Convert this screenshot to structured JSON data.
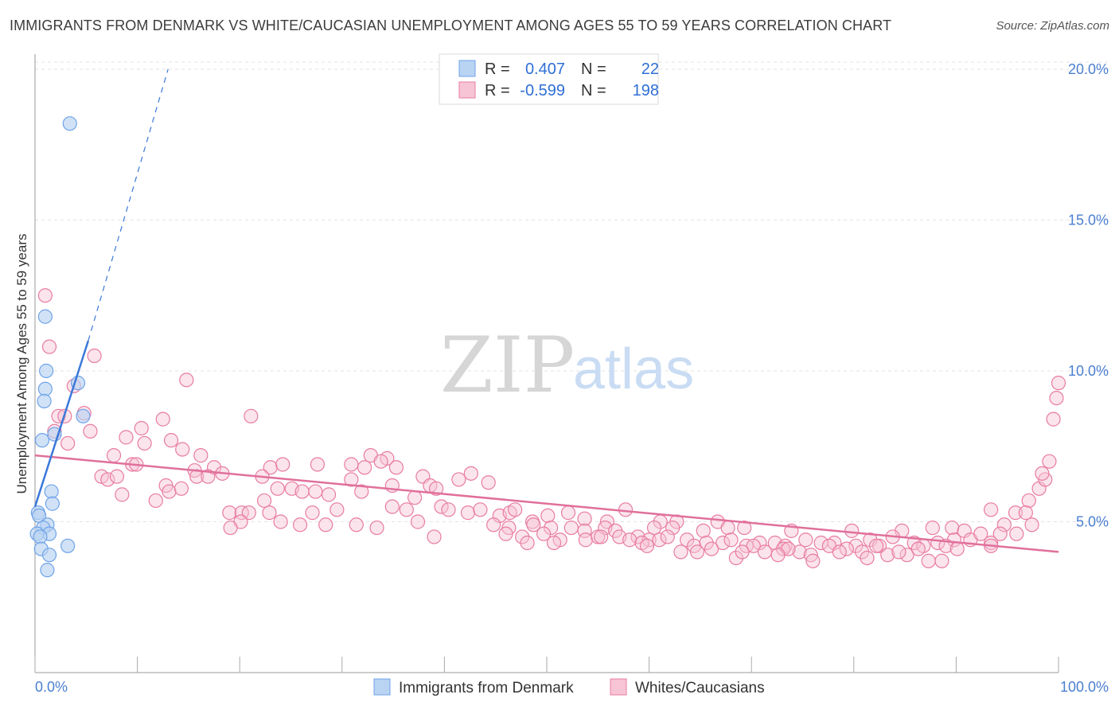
{
  "title": "IMMIGRANTS FROM DENMARK VS WHITE/CAUCASIAN UNEMPLOYMENT AMONG AGES 55 TO 59 YEARS CORRELATION CHART",
  "source": "Source: ZipAtlas.com",
  "watermark": {
    "zip": "ZIP",
    "atlas": "atlas"
  },
  "legend": {
    "r_label": "R =",
    "n_label": "N =",
    "rows": [
      {
        "r": "0.407",
        "n": "22"
      },
      {
        "r": "-0.599",
        "n": "198"
      }
    ]
  },
  "chart_data": {
    "type": "scatter",
    "title": "IMMIGRANTS FROM DENMARK VS WHITE/CAUCASIAN UNEMPLOYMENT AMONG AGES 55 TO 59 YEARS CORRELATION CHART",
    "xlabel": "",
    "ylabel": "Unemployment Among Ages 55 to 59 years",
    "xlim": [
      0,
      100
    ],
    "ylim": [
      0,
      20.5
    ],
    "x_tick_labels": [
      "0.0%",
      "100.0%"
    ],
    "y_ticks": [
      5,
      10,
      15,
      20
    ],
    "y_tick_labels": [
      "5.0%",
      "10.0%",
      "15.0%",
      "20.0%"
    ],
    "colors": {
      "blue": "#6fa3e8",
      "blue_fill": "#b9d3f3",
      "pink": "#e87ca1",
      "pink_fill": "#f7c4d5",
      "blue_line": "#3b78d8",
      "pink_line": "#e0709a"
    },
    "series": [
      {
        "name": "Immigrants from Denmark",
        "r": 0.407,
        "n": 22,
        "trend": {
          "x0": 0.0,
          "y0": 5.5,
          "x1": 5.2,
          "y1": 11.0,
          "dash_to_x": 13.0,
          "dash_to_y": 20.0
        },
        "points": [
          [
            3.4,
            18.2
          ],
          [
            1.0,
            11.8
          ],
          [
            1.1,
            10.0
          ],
          [
            4.2,
            9.6
          ],
          [
            1.0,
            9.4
          ],
          [
            0.9,
            9.0
          ],
          [
            4.7,
            8.5
          ],
          [
            1.9,
            7.9
          ],
          [
            0.7,
            7.7
          ],
          [
            1.6,
            6.0
          ],
          [
            1.7,
            5.6
          ],
          [
            0.3,
            5.3
          ],
          [
            0.4,
            5.2
          ],
          [
            1.2,
            4.9
          ],
          [
            0.8,
            4.8
          ],
          [
            1.4,
            4.6
          ],
          [
            0.2,
            4.6
          ],
          [
            0.5,
            4.5
          ],
          [
            0.6,
            4.1
          ],
          [
            3.2,
            4.2
          ],
          [
            1.4,
            3.9
          ],
          [
            1.2,
            3.4
          ]
        ]
      },
      {
        "name": "Whites/Caucasians",
        "r": -0.599,
        "n": 198,
        "trend": {
          "x0": 0.0,
          "y0": 7.2,
          "x1": 100.0,
          "y1": 4.0
        },
        "points": [
          [
            1.0,
            12.5
          ],
          [
            1.4,
            10.8
          ],
          [
            5.8,
            10.5
          ],
          [
            3.8,
            9.5
          ],
          [
            14.8,
            9.7
          ],
          [
            2.3,
            8.5
          ],
          [
            2.9,
            8.5
          ],
          [
            4.8,
            8.6
          ],
          [
            21.1,
            8.5
          ],
          [
            1.9,
            8.0
          ],
          [
            5.4,
            8.0
          ],
          [
            10.4,
            8.1
          ],
          [
            12.5,
            8.4
          ],
          [
            3.2,
            7.6
          ],
          [
            8.9,
            7.8
          ],
          [
            10.7,
            7.6
          ],
          [
            13.3,
            7.7
          ],
          [
            7.7,
            7.2
          ],
          [
            14.4,
            7.4
          ],
          [
            16.2,
            7.2
          ],
          [
            32.8,
            7.2
          ],
          [
            34.4,
            7.1
          ],
          [
            9.5,
            6.9
          ],
          [
            9.9,
            6.9
          ],
          [
            23.0,
            6.8
          ],
          [
            24.2,
            6.9
          ],
          [
            27.6,
            6.9
          ],
          [
            30.9,
            6.9
          ],
          [
            32.2,
            6.8
          ],
          [
            33.8,
            7.0
          ],
          [
            35.3,
            6.8
          ],
          [
            15.6,
            6.7
          ],
          [
            17.5,
            6.8
          ],
          [
            6.5,
            6.5
          ],
          [
            7.1,
            6.4
          ],
          [
            8.0,
            6.5
          ],
          [
            15.8,
            6.5
          ],
          [
            16.9,
            6.5
          ],
          [
            18.3,
            6.6
          ],
          [
            22.2,
            6.5
          ],
          [
            30.9,
            6.4
          ],
          [
            34.9,
            6.2
          ],
          [
            37.9,
            6.5
          ],
          [
            41.4,
            6.4
          ],
          [
            42.6,
            6.6
          ],
          [
            44.3,
            6.3
          ],
          [
            12.8,
            6.2
          ],
          [
            13.1,
            6.0
          ],
          [
            14.3,
            6.1
          ],
          [
            23.7,
            6.1
          ],
          [
            25.1,
            6.1
          ],
          [
            26.1,
            6.0
          ],
          [
            27.4,
            6.0
          ],
          [
            28.7,
            5.9
          ],
          [
            31.9,
            6.0
          ],
          [
            38.6,
            6.2
          ],
          [
            39.2,
            6.1
          ],
          [
            8.5,
            5.9
          ],
          [
            11.8,
            5.7
          ],
          [
            19.0,
            5.3
          ],
          [
            20.2,
            5.3
          ],
          [
            20.9,
            5.3
          ],
          [
            22.9,
            5.3
          ],
          [
            27.1,
            5.3
          ],
          [
            29.5,
            5.4
          ],
          [
            34.9,
            5.5
          ],
          [
            36.3,
            5.4
          ],
          [
            39.7,
            5.5
          ],
          [
            40.4,
            5.4
          ],
          [
            42.3,
            5.3
          ],
          [
            43.5,
            5.4
          ],
          [
            45.4,
            5.2
          ],
          [
            46.4,
            5.3
          ],
          [
            46.9,
            5.4
          ],
          [
            48.6,
            5.0
          ],
          [
            50.1,
            5.2
          ],
          [
            52.1,
            5.3
          ],
          [
            53.7,
            5.1
          ],
          [
            55.9,
            5.0
          ],
          [
            57.7,
            5.4
          ],
          [
            61.1,
            5.0
          ],
          [
            62.7,
            5.0
          ],
          [
            66.7,
            5.0
          ],
          [
            22.4,
            5.7
          ],
          [
            37.1,
            5.8
          ],
          [
            20.1,
            5.0
          ],
          [
            24.0,
            5.0
          ],
          [
            25.9,
            4.9
          ],
          [
            28.4,
            4.9
          ],
          [
            31.4,
            4.9
          ],
          [
            37.4,
            5.0
          ],
          [
            44.8,
            4.9
          ],
          [
            46.3,
            4.8
          ],
          [
            48.7,
            4.9
          ],
          [
            50.4,
            4.8
          ],
          [
            52.4,
            4.8
          ],
          [
            53.7,
            4.7
          ],
          [
            55.7,
            4.8
          ],
          [
            56.7,
            4.7
          ],
          [
            60.5,
            4.8
          ],
          [
            62.3,
            4.8
          ],
          [
            65.3,
            4.7
          ],
          [
            67.7,
            4.8
          ],
          [
            69.3,
            4.8
          ],
          [
            73.9,
            4.7
          ],
          [
            79.8,
            4.7
          ],
          [
            84.7,
            4.7
          ],
          [
            87.7,
            4.8
          ],
          [
            89.6,
            4.8
          ],
          [
            90.8,
            4.7
          ],
          [
            93.4,
            5.4
          ],
          [
            94.7,
            4.9
          ],
          [
            95.9,
            4.6
          ],
          [
            19.1,
            4.8
          ],
          [
            33.4,
            4.8
          ],
          [
            39.0,
            4.5
          ],
          [
            46.0,
            4.6
          ],
          [
            47.6,
            4.5
          ],
          [
            49.7,
            4.6
          ],
          [
            51.3,
            4.4
          ],
          [
            53.8,
            4.4
          ],
          [
            55.0,
            4.5
          ],
          [
            57.1,
            4.5
          ],
          [
            58.9,
            4.5
          ],
          [
            60.0,
            4.4
          ],
          [
            61.0,
            4.4
          ],
          [
            61.8,
            4.5
          ],
          [
            63.7,
            4.4
          ],
          [
            64.4,
            4.2
          ],
          [
            65.6,
            4.3
          ],
          [
            67.2,
            4.3
          ],
          [
            68.0,
            4.4
          ],
          [
            69.5,
            4.2
          ],
          [
            70.8,
            4.3
          ],
          [
            72.3,
            4.3
          ],
          [
            73.3,
            4.2
          ],
          [
            75.3,
            4.4
          ],
          [
            76.8,
            4.3
          ],
          [
            78.1,
            4.3
          ],
          [
            80.2,
            4.2
          ],
          [
            81.6,
            4.4
          ],
          [
            82.5,
            4.2
          ],
          [
            83.8,
            4.5
          ],
          [
            85.9,
            4.3
          ],
          [
            86.8,
            4.2
          ],
          [
            88.2,
            4.3
          ],
          [
            89.8,
            4.4
          ],
          [
            91.4,
            4.4
          ],
          [
            92.4,
            4.6
          ],
          [
            93.4,
            4.3
          ],
          [
            94.3,
            4.6
          ],
          [
            95.8,
            5.3
          ],
          [
            97.1,
            5.7
          ],
          [
            97.4,
            4.9
          ],
          [
            48.1,
            4.3
          ],
          [
            50.7,
            4.3
          ],
          [
            55.3,
            4.5
          ],
          [
            58.1,
            4.4
          ],
          [
            59.3,
            4.3
          ],
          [
            63.1,
            4.0
          ],
          [
            66.1,
            4.1
          ],
          [
            68.5,
            3.8
          ],
          [
            70.2,
            4.2
          ],
          [
            71.3,
            4.0
          ],
          [
            73.1,
            4.1
          ],
          [
            74.7,
            4.0
          ],
          [
            75.8,
            3.9
          ],
          [
            77.6,
            4.2
          ],
          [
            79.3,
            4.1
          ],
          [
            80.8,
            4.0
          ],
          [
            82.2,
            4.2
          ],
          [
            83.3,
            3.9
          ],
          [
            85.2,
            3.9
          ],
          [
            86.3,
            4.1
          ],
          [
            87.3,
            3.7
          ],
          [
            89.0,
            4.2
          ],
          [
            90.1,
            4.1
          ],
          [
            93.4,
            4.2
          ],
          [
            59.8,
            4.2
          ],
          [
            64.7,
            4.0
          ],
          [
            69.1,
            4.0
          ],
          [
            73.6,
            4.1
          ],
          [
            78.6,
            4.0
          ],
          [
            81.3,
            3.8
          ],
          [
            84.4,
            4.0
          ],
          [
            72.6,
            3.9
          ],
          [
            76.0,
            3.7
          ],
          [
            88.6,
            3.7
          ],
          [
            98.1,
            6.1
          ],
          [
            98.7,
            6.4
          ],
          [
            99.1,
            7.0
          ],
          [
            96.8,
            5.3
          ],
          [
            98.4,
            6.6
          ],
          [
            99.5,
            8.4
          ],
          [
            99.8,
            9.1
          ],
          [
            100.0,
            9.6
          ]
        ]
      }
    ]
  },
  "bottom_legend": [
    "Immigrants from Denmark",
    "Whites/Caucasians"
  ]
}
